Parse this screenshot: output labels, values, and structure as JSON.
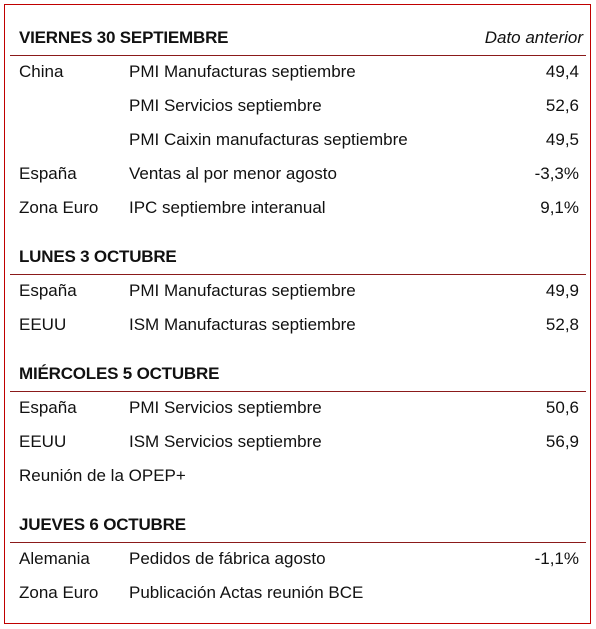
{
  "sections": [
    {
      "title": "VIERNES 30 SEPTIEMBRE",
      "note": "Dato anterior",
      "rows": [
        {
          "region": "China",
          "event": "PMI Manufacturas septiembre",
          "previous": "49,4"
        },
        {
          "event": "PMI Servicios septiembre",
          "previous": "52,6"
        },
        {
          "event": "PMI Caixin manufacturas septiembre",
          "previous": "49,5"
        },
        {
          "region": "España",
          "event": "Ventas al por menor agosto",
          "previous": "-3,3%"
        },
        {
          "region": "Zona Euro",
          "event": "IPC septiembre interanual",
          "previous": "9,1%"
        }
      ]
    },
    {
      "title": "LUNES 3 OCTUBRE",
      "rows": [
        {
          "region": "España",
          "event": "PMI Manufacturas septiembre",
          "previous": "49,9"
        },
        {
          "region": "EEUU",
          "event": "ISM Manufacturas septiembre",
          "previous": "52,8"
        }
      ]
    },
    {
      "title": "MIÉRCOLES 5 OCTUBRE",
      "rows": [
        {
          "region": "España",
          "event": "PMI Servicios septiembre",
          "previous": "50,6"
        },
        {
          "region": "EEUU",
          "event": "ISM Servicios septiembre",
          "previous": "56,9"
        },
        {
          "region": "Reunión de la OPEP+"
        }
      ]
    },
    {
      "title": "JUEVES 6 OCTUBRE",
      "rows": [
        {
          "region": "Alemania",
          "event": "Pedidos de fábrica agosto",
          "previous": "-1,1%"
        },
        {
          "region": "Zona Euro",
          "event": "Publicación Actas reunión BCE"
        }
      ]
    }
  ]
}
